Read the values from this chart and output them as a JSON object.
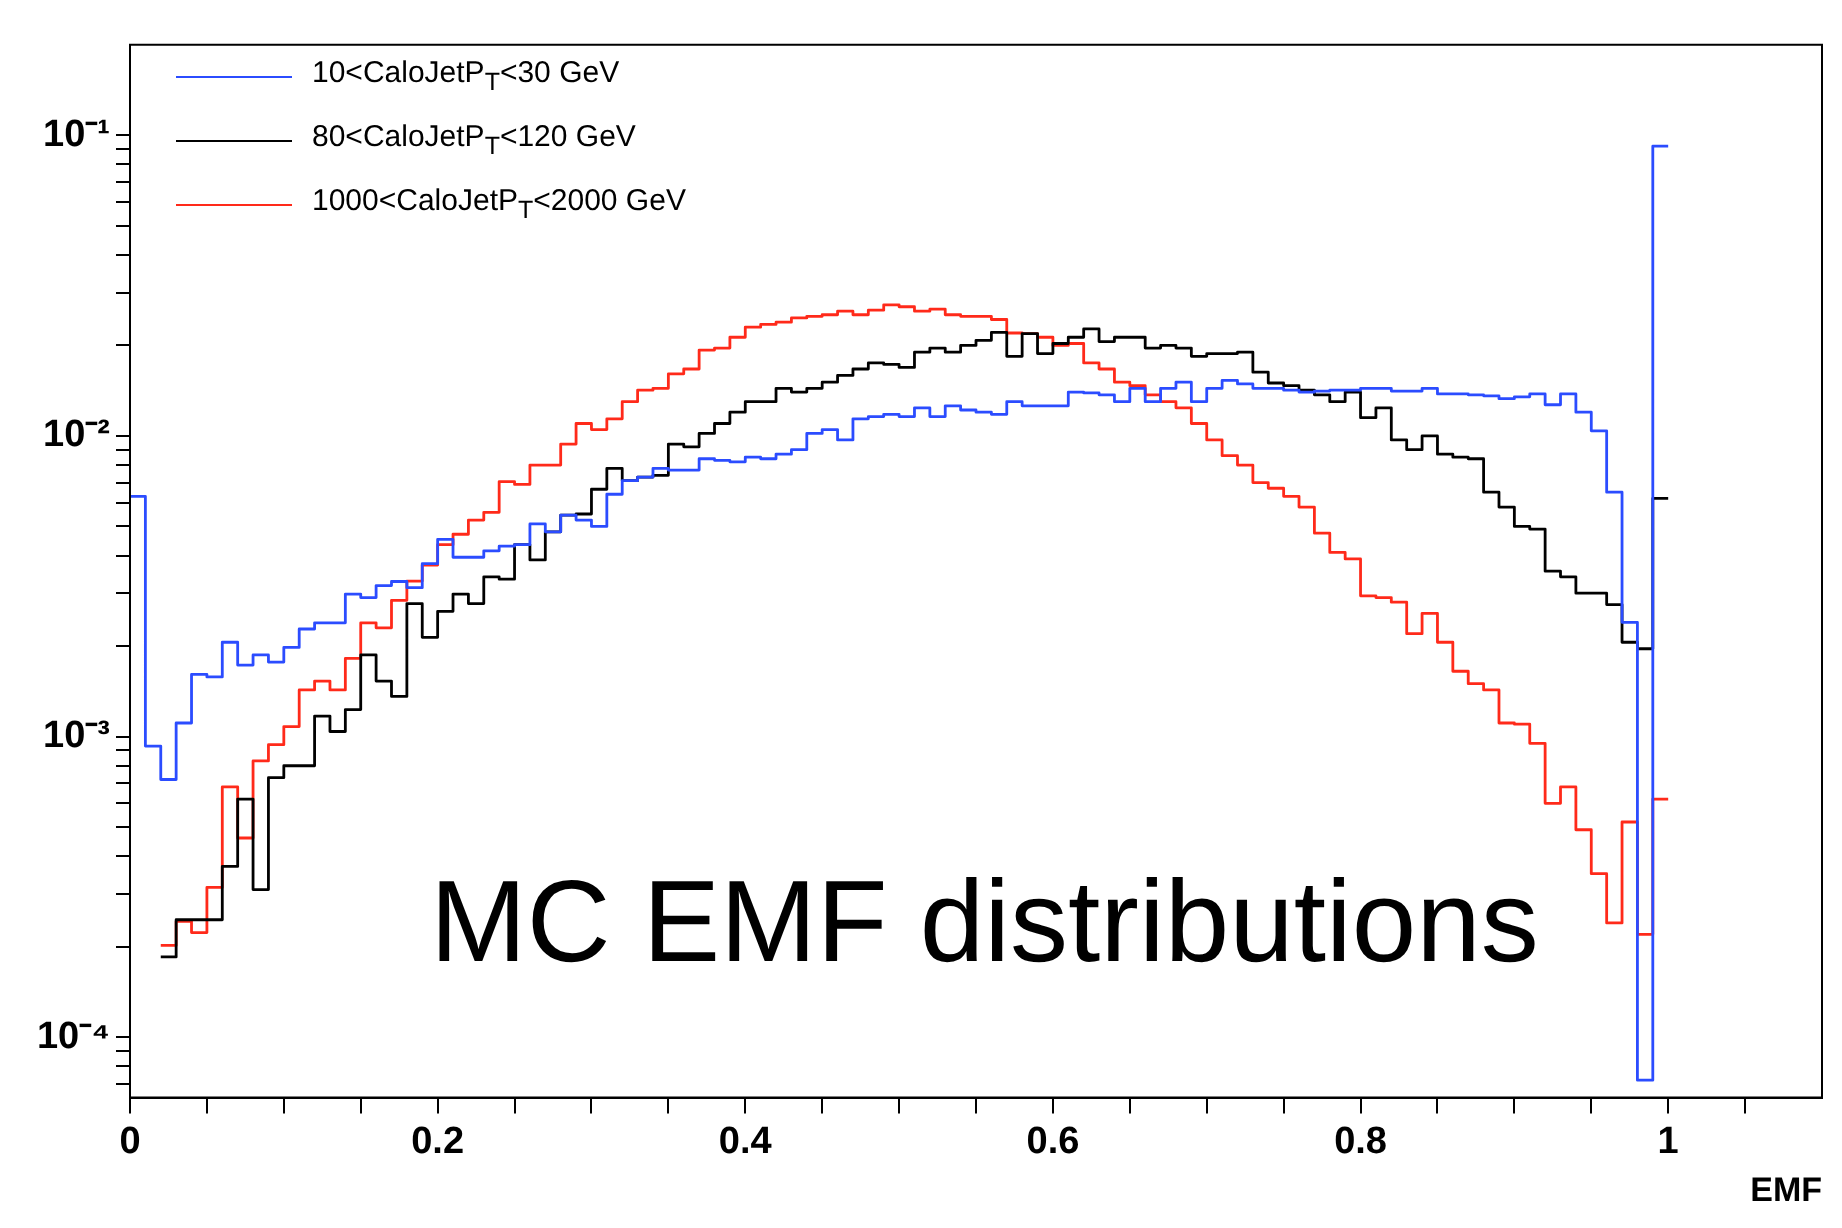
{
  "chart_data": {
    "type": "histogram",
    "xlabel": "EMF",
    "log": "y",
    "legend": "top left",
    "annotations": [
      "MC EMF distributions"
    ],
    "xlim": [
      0,
      1.1
    ],
    "xticks": [
      0,
      {
        "value": 0.05,
        "label": null
      },
      {
        "value": 0.1,
        "label": null
      },
      {
        "value": 0.15,
        "label": null
      },
      0.2,
      {
        "value": 0.25,
        "label": null
      },
      {
        "value": 0.3,
        "label": null
      },
      {
        "value": 0.35,
        "label": null
      },
      0.4,
      {
        "value": 0.45,
        "label": null
      },
      {
        "value": 0.5,
        "label": null
      },
      {
        "value": 0.55,
        "label": null
      },
      0.6,
      {
        "value": 0.65,
        "label": null
      },
      {
        "value": 0.7,
        "label": null
      },
      {
        "value": 0.75,
        "label": null
      },
      0.8,
      {
        "value": 0.85,
        "label": null
      },
      {
        "value": 0.9,
        "label": null
      },
      {
        "value": 0.95,
        "label": null
      },
      1,
      {
        "value": 1.05,
        "label": null
      }
    ],
    "ylim": [
      6.3e-05,
      0.2
    ],
    "yticks": [
      {
        "value": 7e-05,
        "label": null
      },
      {
        "value": 8e-05,
        "label": null
      },
      {
        "value": 9e-05,
        "label": null
      },
      {
        "value": 0.0001,
        "label": "10⁻⁴"
      },
      {
        "value": 0.0002,
        "label": null
      },
      {
        "value": 0.0003,
        "label": null
      },
      {
        "value": 0.0004,
        "label": null
      },
      {
        "value": 0.0005,
        "label": null
      },
      {
        "value": 0.0006,
        "label": null
      },
      {
        "value": 0.0007,
        "label": null
      },
      {
        "value": 0.0008,
        "label": null
      },
      {
        "value": 0.0009,
        "label": null
      },
      {
        "value": 0.001,
        "label": "10⁻³"
      },
      {
        "value": 0.002,
        "label": null
      },
      {
        "value": 0.003,
        "label": null
      },
      {
        "value": 0.004,
        "label": null
      },
      {
        "value": 0.005,
        "label": null
      },
      {
        "value": 0.006,
        "label": null
      },
      {
        "value": 0.007,
        "label": null
      },
      {
        "value": 0.008,
        "label": null
      },
      {
        "value": 0.009,
        "label": null
      },
      {
        "value": 0.01,
        "label": "10⁻²"
      },
      {
        "value": 0.02,
        "label": null
      },
      {
        "value": 0.03,
        "label": null
      },
      {
        "value": 0.04,
        "label": null
      },
      {
        "value": 0.05,
        "label": null
      },
      {
        "value": 0.06,
        "label": null
      },
      {
        "value": 0.07,
        "label": null
      },
      {
        "value": 0.08,
        "label": null
      },
      {
        "value": 0.09,
        "label": null
      },
      {
        "value": 0.1,
        "label": "10⁻¹"
      }
    ],
    "bins": [
      0,
      0.01,
      0.02,
      0.03,
      0.04,
      0.05,
      0.06,
      0.07,
      0.08,
      0.09,
      0.1,
      0.11,
      0.12,
      0.13,
      0.14,
      0.15,
      0.16,
      0.17,
      0.18,
      0.19,
      0.2,
      0.21,
      0.22,
      0.23,
      0.24,
      0.25,
      0.26,
      0.27,
      0.28,
      0.29,
      0.3,
      0.31,
      0.32,
      0.33,
      0.34,
      0.35,
      0.36,
      0.37,
      0.38,
      0.39,
      0.4,
      0.41,
      0.42,
      0.43,
      0.44,
      0.45,
      0.46,
      0.47,
      0.48,
      0.49,
      0.5,
      0.51,
      0.52,
      0.53,
      0.54,
      0.55,
      0.56,
      0.57,
      0.58,
      0.59,
      0.6,
      0.61,
      0.62,
      0.63,
      0.64,
      0.65,
      0.66,
      0.67,
      0.68,
      0.69,
      0.7,
      0.71,
      0.72,
      0.73,
      0.74,
      0.75,
      0.76,
      0.77,
      0.78,
      0.79,
      0.8,
      0.81,
      0.82,
      0.83,
      0.84,
      0.85,
      0.86,
      0.87,
      0.88,
      0.89,
      0.9,
      0.91,
      0.92,
      0.93,
      0.94,
      0.95,
      0.96,
      0.97,
      0.98,
      0.99,
      1.0
    ],
    "series": [
      {
        "name": "10<CaloJetP$_{T}$<30 GeV",
        "color": "#2b4cff",
        "values": [
          0.0063,
          0.00093,
          0.00072,
          0.00111,
          0.00161,
          0.00158,
          0.00206,
          0.00173,
          0.00187,
          0.00177,
          0.00198,
          0.00228,
          0.00239,
          0.00239,
          0.00298,
          0.0029,
          0.00318,
          0.00328,
          0.00313,
          0.00376,
          0.00453,
          0.00395,
          0.00395,
          0.00415,
          0.0043,
          0.00435,
          0.0051,
          0.0048,
          0.00545,
          0.00525,
          0.005,
          0.0064,
          0.0071,
          0.0073,
          0.0078,
          0.0077,
          0.0077,
          0.0084,
          0.0083,
          0.0082,
          0.0085,
          0.0084,
          0.0087,
          0.009,
          0.0102,
          0.0105,
          0.0097,
          0.0114,
          0.0116,
          0.0118,
          0.0116,
          0.0124,
          0.0116,
          0.0126,
          0.0122,
          0.012,
          0.0118,
          0.013,
          0.0126,
          0.0126,
          0.0126,
          0.014,
          0.0139,
          0.0137,
          0.013,
          0.0144,
          0.013,
          0.0144,
          0.0151,
          0.013,
          0.0144,
          0.0153,
          0.0149,
          0.0144,
          0.0144,
          0.0142,
          0.014,
          0.0141,
          0.0142,
          0.0142,
          0.0144,
          0.0144,
          0.0141,
          0.0141,
          0.0144,
          0.0138,
          0.0138,
          0.0137,
          0.0136,
          0.0133,
          0.0135,
          0.0138,
          0.0127,
          0.0138,
          0.012,
          0.0104,
          0.0065,
          0.0024,
          7.2e-05,
          0.092
        ]
      },
      {
        "name": "80<CaloJetP$_{T}$<120 GeV",
        "color": "#000000",
        "bins": [
          0.02,
          0.03,
          0.04,
          0.05,
          0.06,
          0.07,
          0.08,
          0.09,
          0.1,
          0.11,
          0.12,
          0.13,
          0.14,
          0.15,
          0.16,
          0.17,
          0.18,
          0.19,
          0.2,
          0.21,
          0.22,
          0.23,
          0.24,
          0.25,
          0.26,
          0.27,
          0.28,
          0.29,
          0.3,
          0.31,
          0.32,
          0.33,
          0.34,
          0.35,
          0.36,
          0.37,
          0.38,
          0.39,
          0.4,
          0.41,
          0.42,
          0.43,
          0.44,
          0.45,
          0.46,
          0.47,
          0.48,
          0.49,
          0.5,
          0.51,
          0.52,
          0.53,
          0.54,
          0.55,
          0.56,
          0.57,
          0.58,
          0.59,
          0.6,
          0.61,
          0.62,
          0.63,
          0.64,
          0.65,
          0.66,
          0.67,
          0.68,
          0.69,
          0.7,
          0.71,
          0.72,
          0.73,
          0.74,
          0.75,
          0.76,
          0.77,
          0.78,
          0.79,
          0.8,
          0.81,
          0.82,
          0.83,
          0.84,
          0.85,
          0.86,
          0.87,
          0.88,
          0.89,
          0.9,
          0.91,
          0.92,
          0.93,
          0.94,
          0.95,
          0.96,
          0.97,
          0.98,
          0.99,
          1.0
        ],
        "values": [
          0.000185,
          0.000246,
          0.000246,
          0.000246,
          0.00037,
          0.00062,
          0.00031,
          0.00073,
          0.0008,
          0.0008,
          0.00117,
          0.00104,
          0.00123,
          0.00187,
          0.00153,
          0.00136,
          0.00277,
          0.00214,
          0.00261,
          0.00298,
          0.00277,
          0.0034,
          0.00334,
          0.00435,
          0.00387,
          0.0048,
          0.00545,
          0.0055,
          0.00665,
          0.0078,
          0.0071,
          0.0073,
          0.0074,
          0.0094,
          0.0092,
          0.0102,
          0.011,
          0.012,
          0.013,
          0.013,
          0.0144,
          0.014,
          0.0144,
          0.0151,
          0.0159,
          0.0167,
          0.0175,
          0.0173,
          0.0169,
          0.019,
          0.0196,
          0.019,
          0.02,
          0.0208,
          0.0221,
          0.0184,
          0.0219,
          0.0188,
          0.0203,
          0.0213,
          0.0227,
          0.0206,
          0.0213,
          0.0213,
          0.0196,
          0.02,
          0.0196,
          0.0184,
          0.0188,
          0.0188,
          0.019,
          0.0163,
          0.015,
          0.0147,
          0.0142,
          0.0137,
          0.013,
          0.014,
          0.0115,
          0.0124,
          0.0097,
          0.009,
          0.01,
          0.0087,
          0.0085,
          0.0084,
          0.0065,
          0.0058,
          0.005,
          0.0049,
          0.00355,
          0.0034,
          0.003,
          0.003,
          0.00275,
          0.00206,
          0.00196,
          0.0062
        ]
      },
      {
        "name": "1000<CaloJetP$_{T}$<2000 GeV",
        "color": "#ff2a1a",
        "bins": [
          0.02,
          0.03,
          0.04,
          0.05,
          0.06,
          0.07,
          0.08,
          0.09,
          0.1,
          0.11,
          0.12,
          0.13,
          0.14,
          0.15,
          0.16,
          0.17,
          0.18,
          0.19,
          0.2,
          0.21,
          0.22,
          0.23,
          0.24,
          0.25,
          0.26,
          0.27,
          0.28,
          0.29,
          0.3,
          0.31,
          0.32,
          0.33,
          0.34,
          0.35,
          0.36,
          0.37,
          0.38,
          0.39,
          0.4,
          0.41,
          0.42,
          0.43,
          0.44,
          0.45,
          0.46,
          0.47,
          0.48,
          0.49,
          0.5,
          0.51,
          0.52,
          0.53,
          0.54,
          0.55,
          0.56,
          0.57,
          0.58,
          0.59,
          0.6,
          0.61,
          0.62,
          0.63,
          0.64,
          0.65,
          0.66,
          0.67,
          0.68,
          0.69,
          0.7,
          0.71,
          0.72,
          0.73,
          0.74,
          0.75,
          0.76,
          0.77,
          0.78,
          0.79,
          0.8,
          0.81,
          0.82,
          0.83,
          0.84,
          0.85,
          0.86,
          0.87,
          0.88,
          0.89,
          0.9,
          0.91,
          0.92,
          0.93,
          0.94,
          0.95,
          0.96,
          0.97,
          0.98,
          0.99,
          1.0
        ],
        "values": [
          0.000202,
          0.000243,
          0.000223,
          0.000315,
          0.00068,
          0.00046,
          0.00083,
          0.00094,
          0.00108,
          0.00143,
          0.00153,
          0.00143,
          0.00182,
          0.00239,
          0.0023,
          0.00284,
          0.00329,
          0.00372,
          0.00435,
          0.00471,
          0.00525,
          0.00557,
          0.00705,
          0.0069,
          0.008,
          0.008,
          0.0094,
          0.011,
          0.0105,
          0.0114,
          0.013,
          0.0142,
          0.0144,
          0.0161,
          0.0167,
          0.0193,
          0.0196,
          0.0213,
          0.023,
          0.0235,
          0.0239,
          0.0247,
          0.025,
          0.0253,
          0.026,
          0.0253,
          0.0262,
          0.0273,
          0.0269,
          0.026,
          0.0264,
          0.0253,
          0.025,
          0.025,
          0.0244,
          0.022,
          0.0219,
          0.0213,
          0.02,
          0.0203,
          0.0175,
          0.0167,
          0.0151,
          0.0147,
          0.0137,
          0.013,
          0.0124,
          0.011,
          0.0097,
          0.0086,
          0.008,
          0.007,
          0.0067,
          0.0063,
          0.0058,
          0.00475,
          0.0041,
          0.0039,
          0.00294,
          0.0029,
          0.0028,
          0.0022,
          0.00257,
          0.00206,
          0.00165,
          0.0015,
          0.00143,
          0.00111,
          0.0011,
          0.00095,
          0.0006,
          0.00068,
          0.00049,
          0.00035,
          0.00024,
          0.00052,
          0.00022,
          0.00062
        ]
      }
    ]
  }
}
